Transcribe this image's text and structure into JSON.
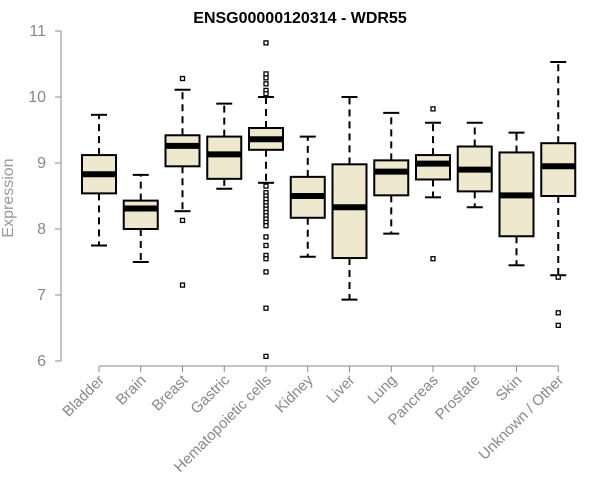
{
  "chart_data": {
    "type": "box",
    "title": "ENSG00000120314 - WDR55",
    "xlabel": "",
    "ylabel": "Expression",
    "ylim": [
      6,
      11
    ],
    "yticks": [
      "6",
      "7",
      "8",
      "9",
      "10",
      "11"
    ],
    "grid": false,
    "box_fill": "#EEE8CE",
    "box_stroke": "#000000",
    "categories": [
      "Bladder",
      "Brain",
      "Breast",
      "Gastric",
      "Hematopoietic cells",
      "Kidney",
      "Liver",
      "Lung",
      "Pancreas",
      "Prostate",
      "Skin",
      "Unknown / Other"
    ],
    "boxes": [
      {
        "whisker_low": 7.75,
        "q1": 8.54,
        "median": 8.83,
        "q3": 9.12,
        "whisker_high": 9.73,
        "outliers": []
      },
      {
        "whisker_low": 7.5,
        "q1": 8.0,
        "median": 8.31,
        "q3": 8.43,
        "whisker_high": 8.82,
        "outliers": []
      },
      {
        "whisker_low": 8.27,
        "q1": 8.95,
        "median": 9.26,
        "q3": 9.42,
        "whisker_high": 10.11,
        "outliers": [
          10.28,
          8.13,
          7.15
        ]
      },
      {
        "whisker_low": 8.61,
        "q1": 8.76,
        "median": 9.13,
        "q3": 9.4,
        "whisker_high": 9.9,
        "outliers": []
      },
      {
        "whisker_low": 8.7,
        "q1": 9.2,
        "median": 9.36,
        "q3": 9.53,
        "whisker_high": 10.0,
        "outliers": [
          10.82,
          10.35,
          10.29,
          10.2,
          10.1,
          10.05,
          8.65,
          8.55,
          8.5,
          8.45,
          8.4,
          8.35,
          8.3,
          8.25,
          8.2,
          8.15,
          8.1,
          8.05,
          7.88,
          7.75,
          7.6,
          7.55,
          7.35,
          6.8,
          6.07
        ]
      },
      {
        "whisker_low": 7.58,
        "q1": 8.17,
        "median": 8.5,
        "q3": 8.79,
        "whisker_high": 9.4,
        "outliers": []
      },
      {
        "whisker_low": 6.93,
        "q1": 7.56,
        "median": 8.33,
        "q3": 8.98,
        "whisker_high": 10.0,
        "outliers": []
      },
      {
        "whisker_low": 7.93,
        "q1": 8.51,
        "median": 8.87,
        "q3": 9.04,
        "whisker_high": 9.76,
        "outliers": []
      },
      {
        "whisker_low": 8.48,
        "q1": 8.75,
        "median": 8.99,
        "q3": 9.12,
        "whisker_high": 9.61,
        "outliers": [
          9.82,
          7.55
        ]
      },
      {
        "whisker_low": 8.33,
        "q1": 8.57,
        "median": 8.9,
        "q3": 9.25,
        "whisker_high": 9.61,
        "outliers": []
      },
      {
        "whisker_low": 7.45,
        "q1": 7.89,
        "median": 8.51,
        "q3": 9.16,
        "whisker_high": 9.46,
        "outliers": []
      },
      {
        "whisker_low": 7.3,
        "q1": 8.5,
        "median": 8.95,
        "q3": 9.3,
        "whisker_high": 10.53,
        "outliers": [
          7.27,
          6.73,
          6.54
        ]
      }
    ]
  }
}
